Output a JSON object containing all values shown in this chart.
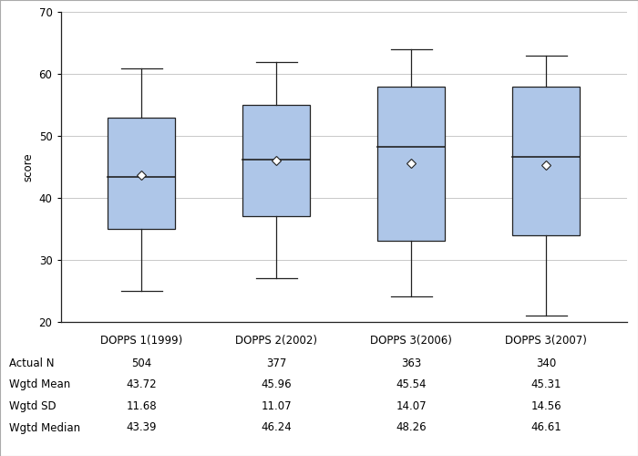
{
  "categories": [
    "DOPPS 1(1999)",
    "DOPPS 2(2002)",
    "DOPPS 3(2006)",
    "DOPPS 3(2007)"
  ],
  "box_data": [
    {
      "q1": 35,
      "median": 43.39,
      "q3": 53,
      "whisker_low": 25,
      "whisker_high": 61,
      "mean": 43.72
    },
    {
      "q1": 37,
      "median": 46.24,
      "q3": 55,
      "whisker_low": 27,
      "whisker_high": 62,
      "mean": 45.96
    },
    {
      "q1": 33,
      "median": 48.26,
      "q3": 58,
      "whisker_low": 24,
      "whisker_high": 64,
      "mean": 45.54
    },
    {
      "q1": 34,
      "median": 46.61,
      "q3": 58,
      "whisker_low": 21,
      "whisker_high": 63,
      "mean": 45.31
    }
  ],
  "actual_n": [
    504,
    377,
    363,
    340
  ],
  "wgtd_mean": [
    43.72,
    45.96,
    45.54,
    45.31
  ],
  "wgtd_sd": [
    11.68,
    11.07,
    14.07,
    14.56
  ],
  "wgtd_median": [
    43.39,
    46.24,
    48.26,
    46.61
  ],
  "ylim": [
    20,
    70
  ],
  "yticks": [
    20,
    30,
    40,
    50,
    60,
    70
  ],
  "ylabel": "score",
  "box_color": "#aec6e8",
  "box_edge_color": "#222222",
  "median_color": "#222222",
  "whisker_color": "#222222",
  "mean_marker_color": "#ffffff",
  "mean_marker_edge_color": "#222222",
  "grid_color": "#c8c8c8",
  "background_color": "#ffffff",
  "table_header_row": [
    "",
    "DOPPS 1(1999)",
    "DOPPS 2(2002)",
    "DOPPS 3(2006)",
    "DOPPS 3(2007)"
  ],
  "table_row_labels": [
    "Actual N",
    "Wgtd Mean",
    "Wgtd SD",
    "Wgtd Median"
  ],
  "font_size": 8.5,
  "border_color": "#aaaaaa"
}
